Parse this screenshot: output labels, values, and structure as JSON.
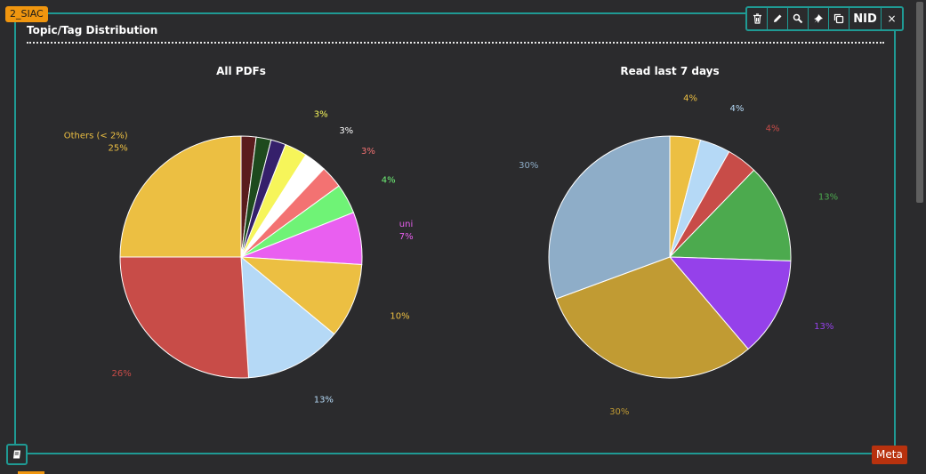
{
  "panel": {
    "tag": "2_SIAC",
    "title": "Topic/Tag Distribution",
    "frame_color": "#1f9a94"
  },
  "toolbar": {
    "buttons": [
      {
        "name": "delete-button",
        "icon": "trash-icon"
      },
      {
        "name": "edit-button",
        "icon": "pencil-icon"
      },
      {
        "name": "search-button",
        "icon": "magnifier-icon"
      },
      {
        "name": "pin-button",
        "icon": "pin-icon"
      },
      {
        "name": "copy-button",
        "icon": "copy-icon"
      },
      {
        "name": "nid-button",
        "label": "NID"
      },
      {
        "name": "close-button",
        "label": "×",
        "icon": "close-icon"
      }
    ]
  },
  "bottom": {
    "icon": "notebook-icon",
    "meta_label": "Meta"
  },
  "chart_data": [
    {
      "type": "pie",
      "title": "All PDFs",
      "slices": [
        {
          "label": "",
          "value": 2,
          "color": "#5a1d1d"
        },
        {
          "label": "",
          "value": 2,
          "color": "#1e4a1e"
        },
        {
          "label": "",
          "value": 2,
          "color": "#35206b"
        },
        {
          "label": "",
          "value": 3,
          "color": "#f6f55a",
          "pct_text": "3%"
        },
        {
          "label": "",
          "value": 3,
          "color": "#ffffff",
          "pct_text": "3%"
        },
        {
          "label": "",
          "value": 3,
          "color": "#f37272",
          "pct_text": "3%"
        },
        {
          "label": "",
          "value": 4,
          "color": "#6ff376",
          "pct_text": "4%"
        },
        {
          "label": "uni",
          "value": 7,
          "color": "#e95ff0",
          "pct_text": "7%"
        },
        {
          "label": "",
          "value": 10,
          "color": "#ecbf42",
          "pct_text": "10%"
        },
        {
          "label": "",
          "value": 13,
          "color": "#b5d9f6",
          "pct_text": "13%"
        },
        {
          "label": "",
          "value": 26,
          "color": "#c84c48",
          "pct_text": "26%"
        },
        {
          "label": "Others (< 2%)",
          "value": 25,
          "color": "#ecbf42",
          "pct_text": "25%"
        }
      ]
    },
    {
      "type": "pie",
      "title": "Read last 7 days",
      "slices": [
        {
          "label": "",
          "value": 4,
          "color": "#ecbf42",
          "pct_text": "4%"
        },
        {
          "label": "",
          "value": 4,
          "color": "#b5d9f6",
          "pct_text": "4%"
        },
        {
          "label": "",
          "value": 4,
          "color": "#c84c48",
          "pct_text": "4%"
        },
        {
          "label": "",
          "value": 13,
          "color": "#4caa4e",
          "pct_text": "13%"
        },
        {
          "label": "",
          "value": 13,
          "color": "#9541ea",
          "pct_text": "13%"
        },
        {
          "label": "",
          "value": 30,
          "color": "#c19b33",
          "pct_text": "30%"
        },
        {
          "label": "",
          "value": 30,
          "color": "#8eadc8",
          "pct_text": "30%"
        }
      ]
    }
  ]
}
